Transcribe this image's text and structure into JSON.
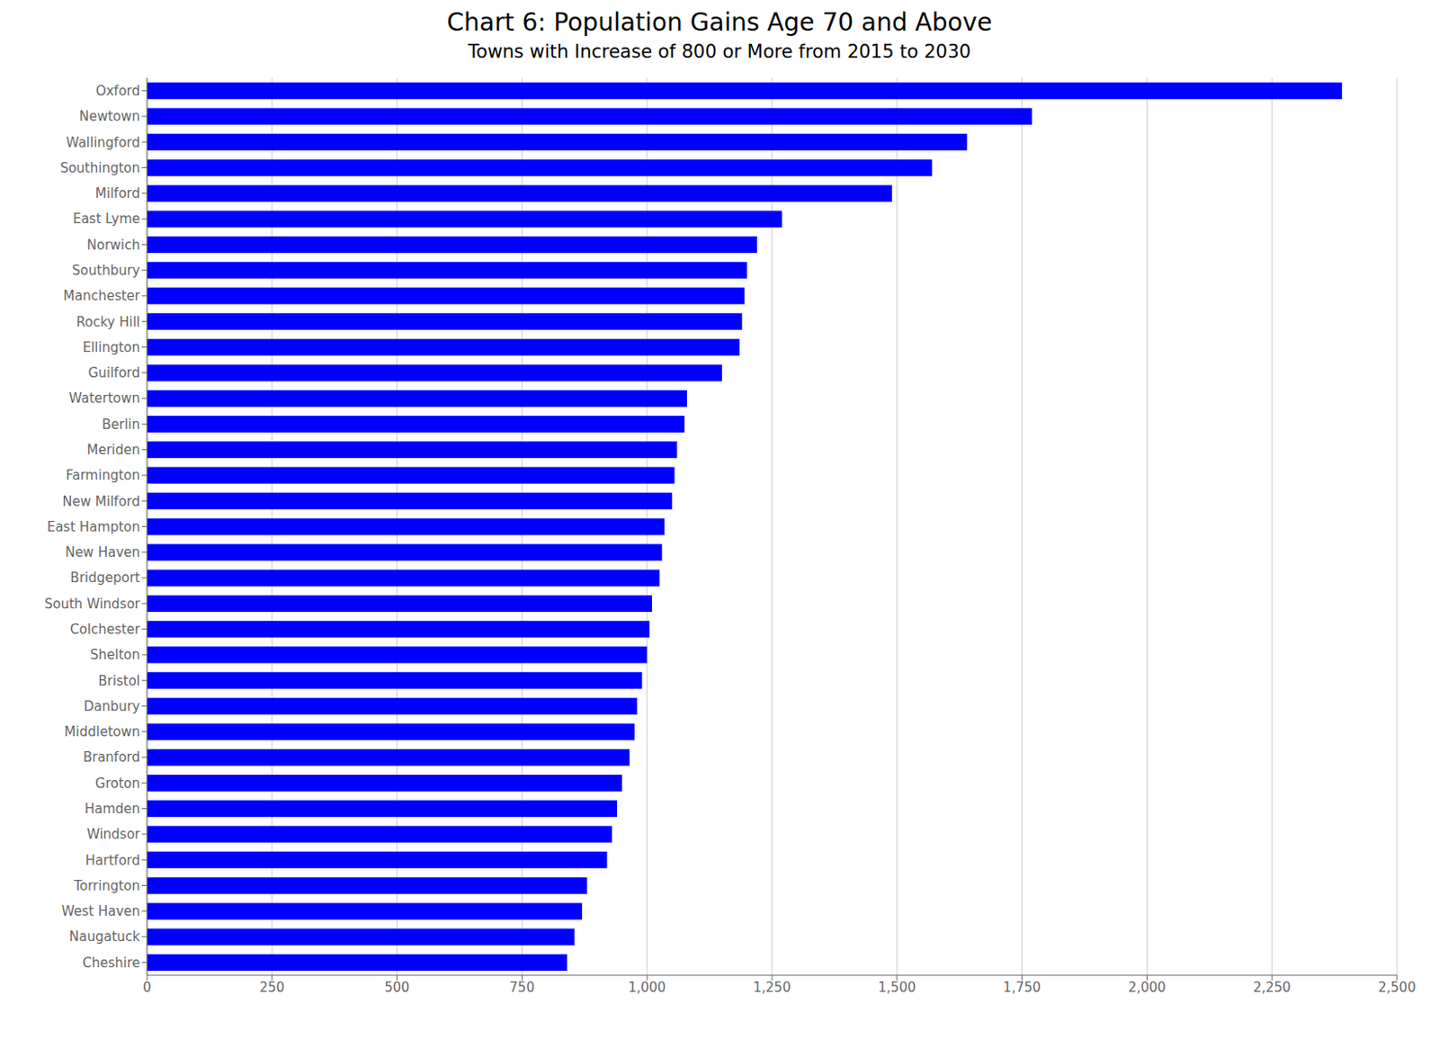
{
  "chart_data": {
    "type": "bar",
    "orientation": "horizontal",
    "title": "Chart 6: Population Gains Age 70 and Above",
    "subtitle": "Towns with Increase of 800 or More from 2015 to 2030",
    "categories": [
      "Oxford",
      "Newtown",
      "Wallingford",
      "Southington",
      "Milford",
      "East Lyme",
      "Norwich",
      "Southbury",
      "Manchester",
      "Rocky Hill",
      "Ellington",
      "Guilford",
      "Watertown",
      "Berlin",
      "Meriden",
      "Farmington",
      "New Milford",
      "East Hampton",
      "New Haven",
      "Bridgeport",
      "South Windsor",
      "Colchester",
      "Shelton",
      "Bristol",
      "Danbury",
      "Middletown",
      "Branford",
      "Groton",
      "Hamden",
      "Windsor",
      "Hartford",
      "Torrington",
      "West Haven",
      "Naugatuck",
      "Cheshire"
    ],
    "values": [
      2390,
      1770,
      1640,
      1570,
      1490,
      1270,
      1220,
      1200,
      1195,
      1190,
      1185,
      1150,
      1080,
      1075,
      1060,
      1055,
      1050,
      1035,
      1030,
      1025,
      1010,
      1005,
      1000,
      990,
      980,
      975,
      965,
      950,
      940,
      930,
      920,
      880,
      870,
      855,
      840
    ],
    "color": "#0000FF",
    "xlim": [
      0,
      2500
    ],
    "xticks": [
      0,
      250,
      500,
      750,
      {
        "value": 1000,
        "label": "1,000"
      },
      {
        "value": 1250,
        "label": "1,250"
      },
      {
        "value": 1500,
        "label": "1,500"
      },
      {
        "value": 1750,
        "label": "1,750"
      },
      {
        "value": 2000,
        "label": "2,000"
      },
      {
        "value": 2250,
        "label": "2,250"
      },
      {
        "value": 2500,
        "label": "2,500"
      }
    ],
    "grid": true
  }
}
